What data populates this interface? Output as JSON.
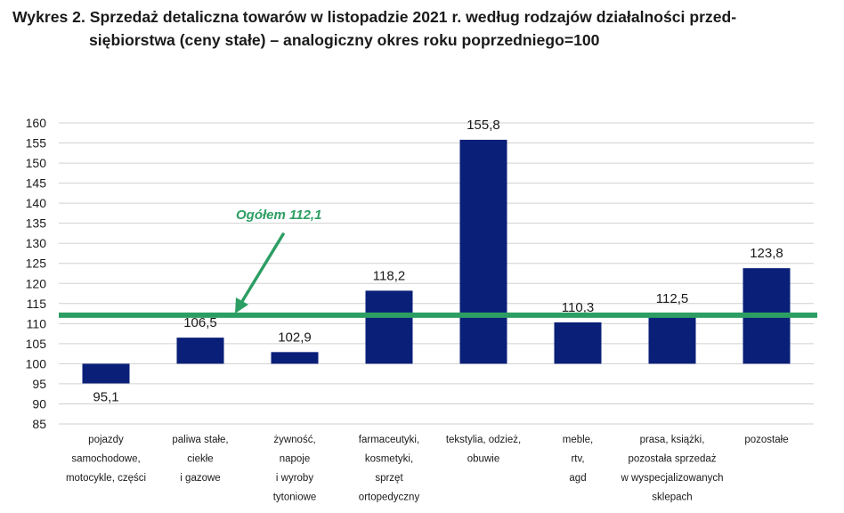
{
  "title": {
    "line1": "Wykres 2. Sprzedaż detaliczna towarów w listopadzie 2021 r. według rodzajów działalności przed-",
    "line2": "siębiorstwa (ceny stałe) – analogiczny okres roku poprzedniego=100"
  },
  "chart_data": {
    "type": "bar",
    "categories": [
      [
        "pojazdy",
        "samochodowe,",
        "motocykle, części"
      ],
      [
        "paliwa stałe,",
        "ciekłe",
        "i gazowe"
      ],
      [
        "żywność,",
        "napoje",
        "i wyroby",
        "tytoniowe"
      ],
      [
        "farmaceutyki,",
        "kosmetyki,",
        "sprzęt",
        "ortopedyczny"
      ],
      [
        "tekstylia, odzież,",
        "obuwie"
      ],
      [
        "meble,",
        "rtv,",
        "agd"
      ],
      [
        "prasa, książki,",
        "pozostała sprzedaż",
        "w wyspecjalizowanych",
        "sklepach"
      ],
      [
        "pozostałe"
      ]
    ],
    "values": [
      95.1,
      106.5,
      102.9,
      118.2,
      155.8,
      110.3,
      112.5,
      123.8
    ],
    "value_labels": [
      "95,1",
      "106,5",
      "102,9",
      "118,2",
      "155,8",
      "110,3",
      "112,5",
      "123,8"
    ],
    "baseline": 100,
    "ylim": [
      85,
      160
    ],
    "yticks": [
      85,
      90,
      95,
      100,
      105,
      110,
      115,
      120,
      125,
      130,
      135,
      140,
      145,
      150,
      155,
      160
    ],
    "grid": true,
    "bar_color": "#0a1f78",
    "reference_line": {
      "value": 112.1,
      "label": "Ogółem 112,1",
      "color": "#2d9e63"
    }
  }
}
